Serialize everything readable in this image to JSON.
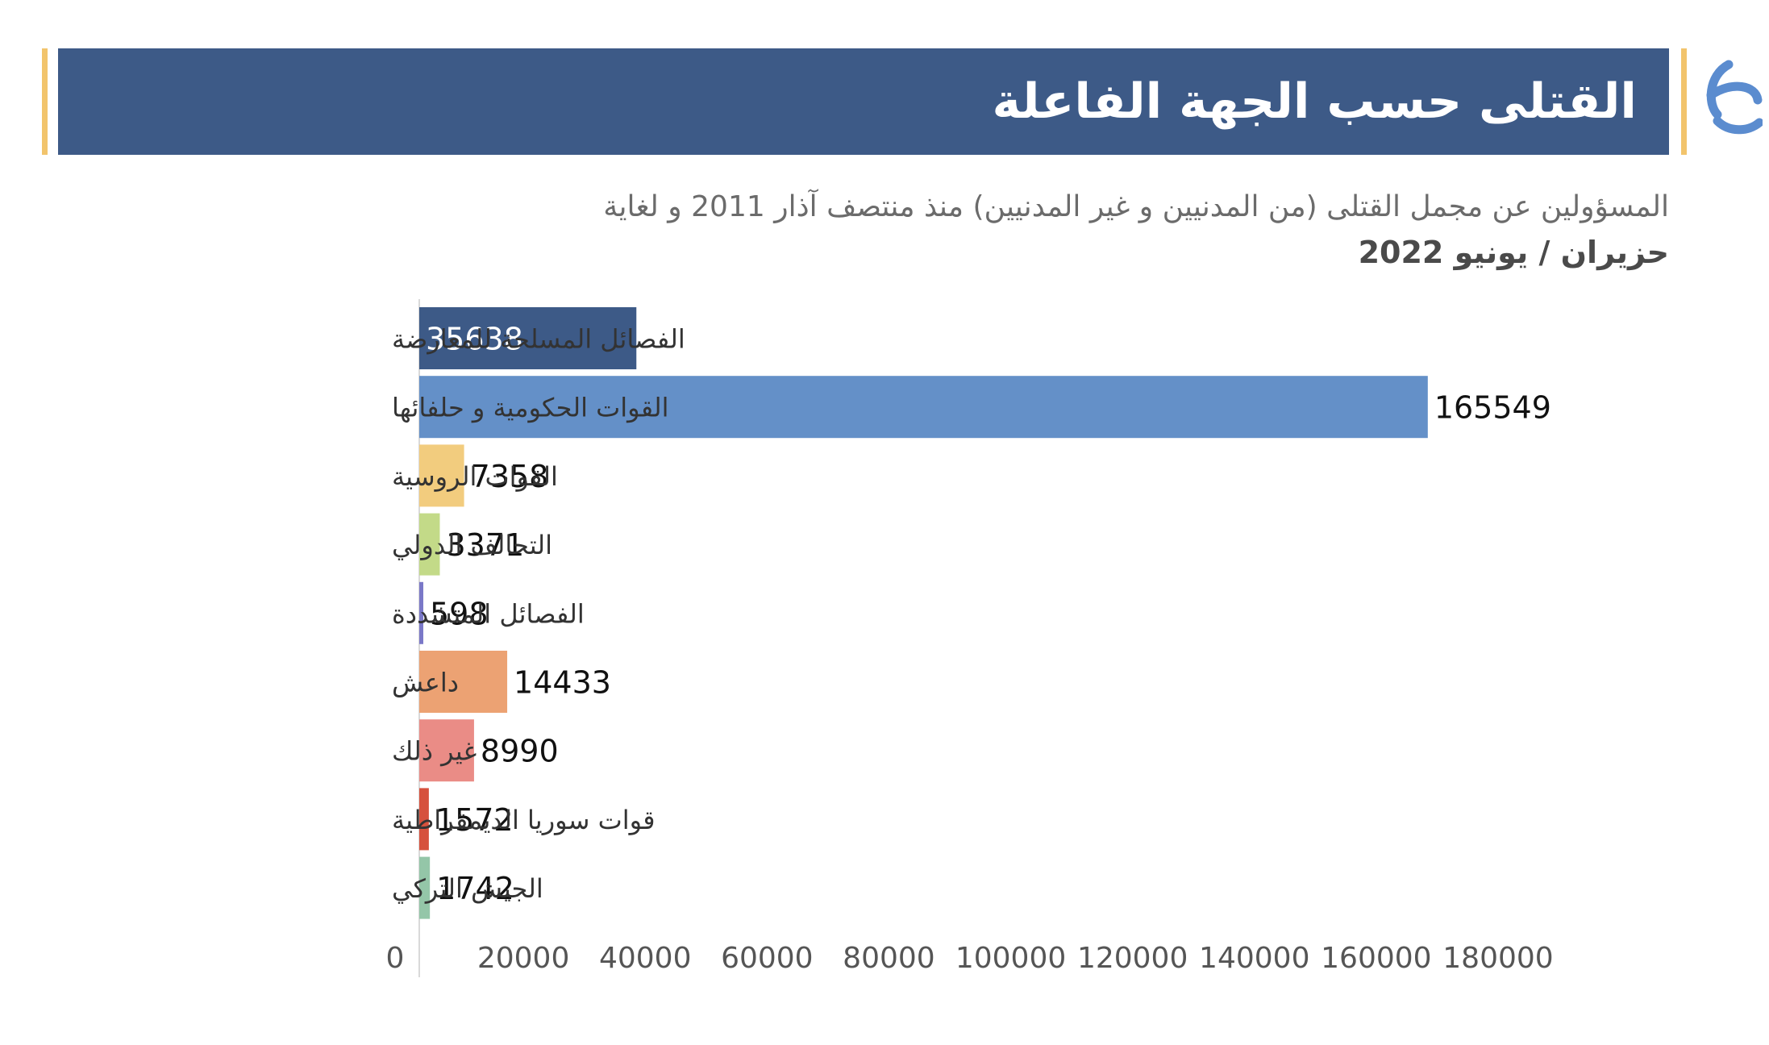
{
  "header": {
    "title": "القتلى حسب الجهة الفاعلة",
    "subtitle_line1": "المسؤولين عن مجمل القتلى (من المدنيين و غير المدنيين) منذ منتصف آذار 2011 و لغاية",
    "subtitle_line2": "حزيران / يونيو 2022"
  },
  "logo": {
    "icon": "organization-logo-icon",
    "color": "#5b8ccf"
  },
  "colors": {
    "title_band": "#3d5a87",
    "accent": "#f2c46c"
  },
  "chart_data": {
    "type": "bar",
    "orientation": "horizontal",
    "categories": [
      "الفصائل المسلحة للمعارضة",
      "القوات الحكومية و حلفائها",
      "القوات الروسية",
      "التحالف الدولي",
      "الفصائل المتشددة",
      "داعش",
      "غير ذلك",
      "قوات سوريا الديمقراطية",
      "الجيش التركي"
    ],
    "values": [
      35638,
      165549,
      7358,
      3371,
      598,
      14433,
      8990,
      1572,
      1742
    ],
    "value_labels": [
      "35638",
      "165549",
      "7358",
      "3371",
      "598",
      "14433",
      "8990",
      "1572",
      "1742"
    ],
    "colors": [
      "#3d5a87",
      "#6490c8",
      "#f2cc7e",
      "#c3da88",
      "#7a78c8",
      "#eca273",
      "#ea8c86",
      "#d6513d",
      "#94c6a8"
    ],
    "xlim": [
      0,
      180000
    ],
    "xticks": [
      "0",
      "20000",
      "40000",
      "60000",
      "80000",
      "100000",
      "120000",
      "140000",
      "160000",
      "180000"
    ],
    "grid": false,
    "legend": "none"
  }
}
